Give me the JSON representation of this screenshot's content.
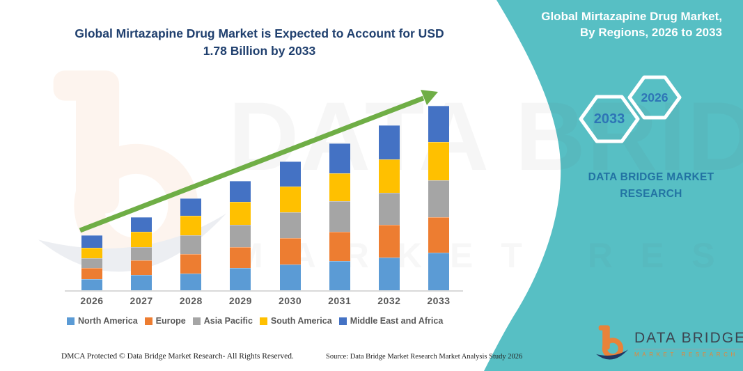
{
  "title": {
    "line1": "Global Mirtazapine Drug Market is Expected to Account for USD",
    "line2": "1.78 Billion by 2033"
  },
  "region_header": {
    "line1": "Global Mirtazapine Drug Market,",
    "line2": "By Regions, 2026 to 2033"
  },
  "hexagons": {
    "left_year": "2033",
    "right_year": "2026"
  },
  "brand_text": {
    "line1": "DATA BRIDGE MARKET",
    "line2": "RESEARCH"
  },
  "watermark": {
    "main": "DATA BRIDGE",
    "sub": "MARKET RESEARCH"
  },
  "logo": {
    "title": "DATA BRIDGE",
    "subtitle": "MARKET RESEARCH"
  },
  "footer": {
    "dmca": "DMCA Protected © Data Bridge Market Research- All Rights Reserved.",
    "source": "Source: Data Bridge Market Research Market Analysis Study 2026"
  },
  "colors": {
    "teal_background": "#57BFC4",
    "arrow_green": "#6FAE46",
    "title_navy": "#1F3F6E",
    "hex_year_blue": "#2E75B6",
    "brand_blue": "#2273A3",
    "label_gray": "#595959",
    "logo_orange": "#E8833A",
    "logo_navy": "#1F3864"
  },
  "chart_data": {
    "type": "bar",
    "stacked": true,
    "title": "Global Mirtazapine Drug Market is Expected to Account for USD 1.78 Billion by 2033",
    "unit": "USD Billion",
    "xlabel": "",
    "ylabel": "",
    "ylim": [
      0,
      1.9
    ],
    "grid": false,
    "legend_position": "bottom",
    "annotation": "Upward trend arrow from 2026 to 2033; 2033 total = USD 1.78 Billion",
    "categories": [
      "2026",
      "2027",
      "2028",
      "2029",
      "2030",
      "2031",
      "2032",
      "2033"
    ],
    "series": [
      {
        "name": "North America",
        "color": "#5B9BD5",
        "values": [
          0.107,
          0.145,
          0.161,
          0.216,
          0.248,
          0.283,
          0.315,
          0.362
        ]
      },
      {
        "name": "Europe",
        "color": "#ED7D31",
        "values": [
          0.105,
          0.145,
          0.186,
          0.201,
          0.253,
          0.284,
          0.318,
          0.342
        ]
      },
      {
        "name": "Asia Pacific",
        "color": "#A5A5A5",
        "values": [
          0.1,
          0.127,
          0.183,
          0.212,
          0.248,
          0.29,
          0.308,
          0.357
        ]
      },
      {
        "name": "South America",
        "color": "#FFC000",
        "values": [
          0.1,
          0.145,
          0.19,
          0.223,
          0.25,
          0.273,
          0.318,
          0.366
        ]
      },
      {
        "name": "Middle East and Africa",
        "color": "#4472C4",
        "values": [
          0.119,
          0.145,
          0.168,
          0.201,
          0.243,
          0.283,
          0.33,
          0.353
        ]
      }
    ],
    "totals_estimated": [
      0.53,
      0.71,
      0.89,
      1.05,
      1.24,
      1.41,
      1.59,
      1.78
    ]
  }
}
